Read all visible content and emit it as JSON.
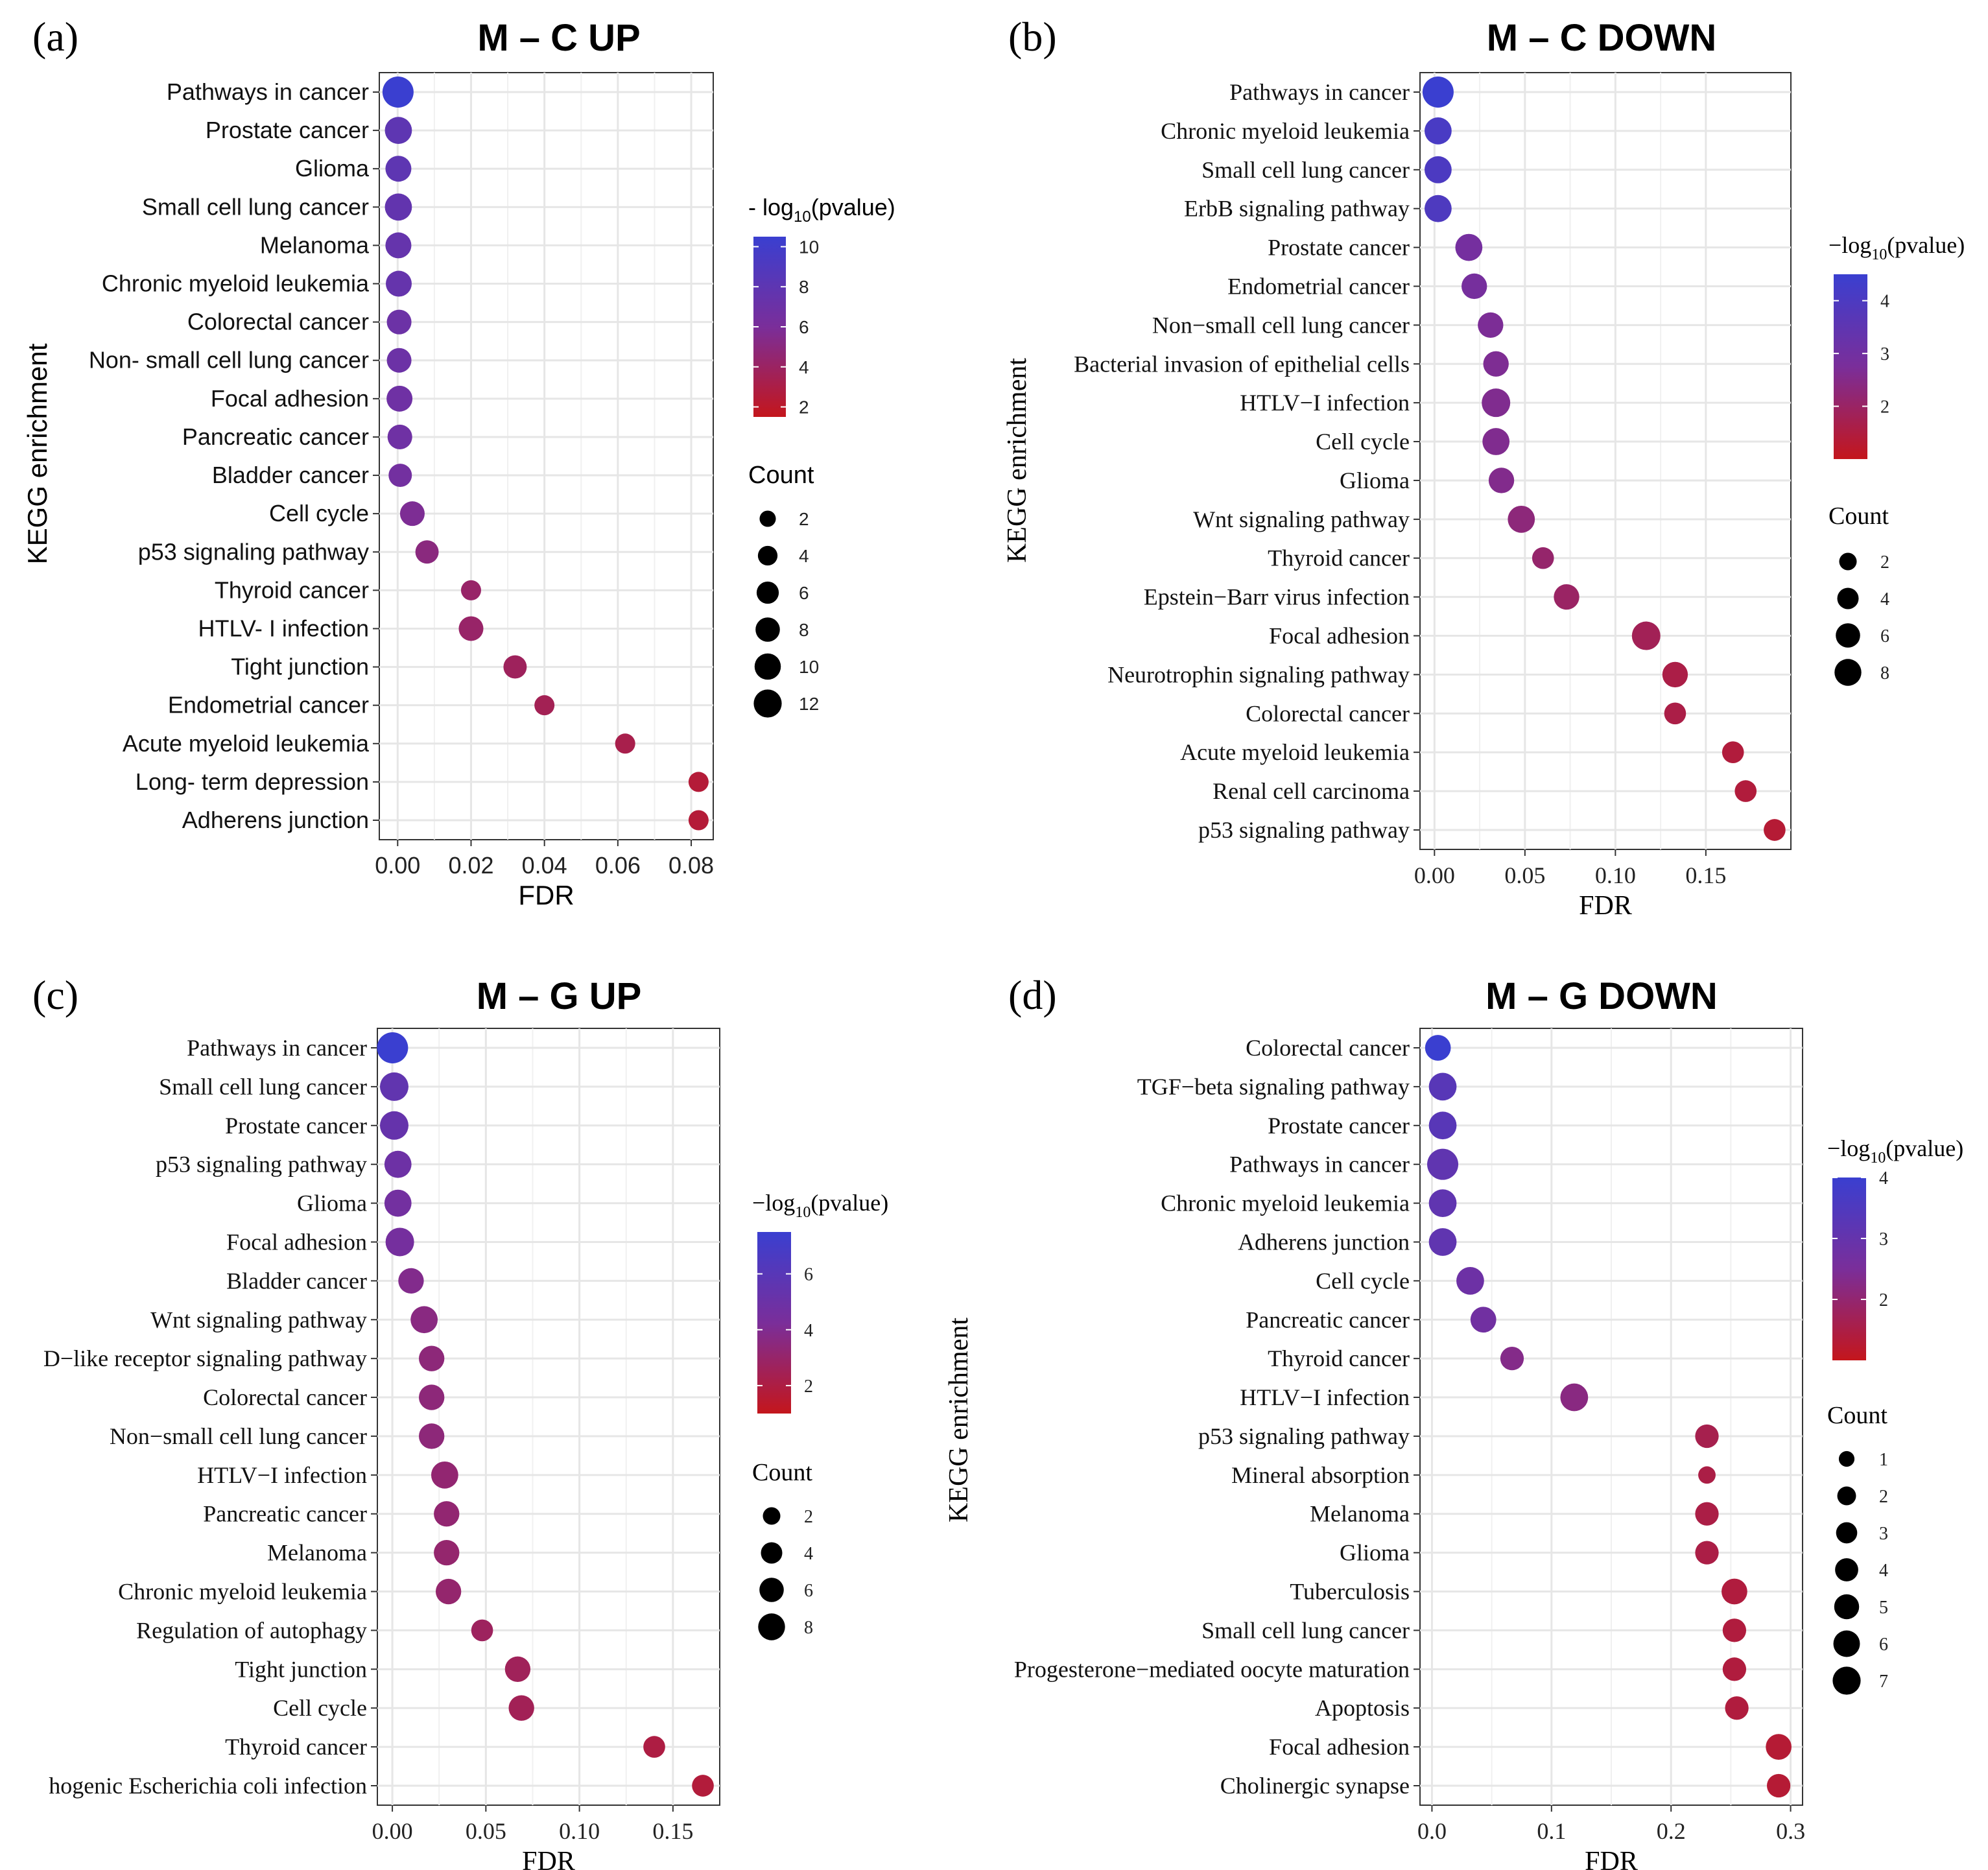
{
  "figure_title": "KEGG enrichment bubble plots",
  "colors": {
    "high": "#3a3fd0",
    "mid": "#7a2e9a",
    "low": "#c4161c",
    "grid": "#e6e6e6",
    "dot_legend": "#000000"
  },
  "chart_data": [
    {
      "panel_label": "(a)",
      "title": "M – C UP",
      "type": "scatter",
      "font_style": "sans",
      "xlabel": "FDR",
      "ylabel": "KEGG enrichment",
      "xlim": [
        -0.005,
        0.086
      ],
      "xticks": [
        0,
        0.02,
        0.04,
        0.06,
        0.08
      ],
      "xtick_labels": [
        "0.00",
        "0.02",
        "0.04",
        "0.06",
        "0.08"
      ],
      "color_legend": {
        "title_prefix": "- log",
        "title_sub": "10",
        "title_suffix": "(pvalue)",
        "min": 1.5,
        "max": 10.5,
        "ticks": [
          10,
          8,
          6,
          4,
          2
        ]
      },
      "size_legend": {
        "title": "Count",
        "values": [
          2,
          4,
          6,
          8,
          10,
          12
        ],
        "max": 12
      },
      "categories": [
        "Pathways in cancer",
        "Prostate cancer",
        "Glioma",
        "Small cell lung cancer",
        "Melanoma",
        "Chronic myeloid leukemia",
        "Colorectal cancer",
        "Non- small cell lung cancer",
        "Focal adhesion",
        "Pancreatic cancer",
        "Bladder cancer",
        "Cell cycle",
        "p53 signaling pathway",
        "Thyroid cancer",
        "HTLV- I infection",
        "Tight junction",
        "Endometrial cancer",
        "Acute myeloid leukemia",
        "Long- term depression",
        "Adherens junction"
      ],
      "fdr": [
        0.0001,
        0.0002,
        0.0002,
        0.0002,
        0.0002,
        0.0003,
        0.0004,
        0.0004,
        0.0005,
        0.0006,
        0.0007,
        0.004,
        0.008,
        0.02,
        0.02,
        0.032,
        0.04,
        0.062,
        0.082,
        0.082
      ],
      "count": [
        12,
        8,
        7,
        8,
        7,
        7,
        6,
        6,
        7,
        6,
        5,
        6,
        5,
        3,
        6,
        5,
        3,
        3,
        3,
        3
      ],
      "neglog10p": [
        10.5,
        8,
        8,
        7.7,
        7.5,
        7.5,
        7,
        7,
        6.8,
        6.8,
        6.5,
        5.8,
        5,
        4.2,
        4.2,
        3.8,
        3.5,
        3.2,
        2.5,
        2.5
      ]
    },
    {
      "panel_label": "(b)",
      "title": "M – C DOWN",
      "type": "scatter",
      "font_style": "serif",
      "xlabel": "FDR",
      "ylabel": "KEGG enrichment",
      "xlim": [
        -0.008,
        0.197
      ],
      "xticks": [
        0,
        0.05,
        0.1,
        0.15
      ],
      "xtick_labels": [
        "0.00",
        "0.05",
        "0.10",
        "0.15"
      ],
      "color_legend": {
        "title_prefix": "−log",
        "title_sub": "10",
        "title_suffix": "(pvalue)",
        "min": 1.0,
        "max": 4.5,
        "ticks": [
          4,
          3,
          2
        ]
      },
      "size_legend": {
        "title": "Count",
        "values": [
          2,
          4,
          6,
          8
        ],
        "max": 9
      },
      "categories": [
        "Pathways in cancer",
        "Chronic myeloid leukemia",
        "Small cell lung cancer",
        "ErbB signaling pathway",
        "Prostate cancer",
        "Endometrial cancer",
        "Non−small cell lung cancer",
        "Bacterial invasion of epithelial cells",
        "HTLV−I infection",
        "Cell cycle",
        "Glioma",
        "Wnt signaling pathway",
        "Thyroid cancer",
        "Epstein−Barr virus infection",
        "Focal adhesion",
        "Neurotrophin signaling pathway",
        "Colorectal cancer",
        "Acute myeloid leukemia",
        "Renal cell carcinoma",
        "p53 signaling pathway"
      ],
      "fdr": [
        0.002,
        0.002,
        0.002,
        0.002,
        0.019,
        0.022,
        0.031,
        0.034,
        0.034,
        0.034,
        0.037,
        0.048,
        0.06,
        0.073,
        0.117,
        0.133,
        0.133,
        0.165,
        0.172,
        0.188
      ],
      "count": [
        9,
        6,
        6,
        6,
        6,
        5,
        5,
        5,
        7,
        6,
        5,
        6,
        3,
        5,
        7,
        5,
        3,
        3,
        3,
        3
      ],
      "neglog10p": [
        4.6,
        4.1,
        4.0,
        3.95,
        2.9,
        2.85,
        2.7,
        2.65,
        2.6,
        2.6,
        2.55,
        2.3,
        2.1,
        2.0,
        1.8,
        1.6,
        1.6,
        1.45,
        1.45,
        1.35
      ]
    },
    {
      "panel_label": "(c)",
      "title": "M – G UP",
      "type": "scatter",
      "font_style": "serif",
      "xlabel": "FDR",
      "ylabel": "",
      "xlim": [
        -0.008,
        0.175
      ],
      "xticks": [
        0,
        0.05,
        0.1,
        0.15
      ],
      "xtick_labels": [
        "0.00",
        "0.05",
        "0.10",
        "0.15"
      ],
      "color_legend": {
        "title_prefix": "−log",
        "title_sub": "10",
        "title_suffix": "(pvalue)",
        "min": 1.0,
        "max": 7.5,
        "ticks": [
          6,
          4,
          2
        ]
      },
      "size_legend": {
        "title": "Count",
        "values": [
          2,
          4,
          6,
          8
        ],
        "max": 9
      },
      "categories": [
        "Pathways in cancer",
        "Small cell lung cancer",
        "Prostate cancer",
        "p53 signaling pathway",
        "Glioma",
        "Focal adhesion",
        "Bladder cancer",
        "Wnt signaling pathway",
        "D−like receptor signaling pathway",
        "Colorectal cancer",
        "Non−small cell lung cancer",
        "HTLV−I infection",
        "Pancreatic cancer",
        "Melanoma",
        "Chronic myeloid leukemia",
        "Regulation of autophagy",
        "Tight junction",
        "Cell cycle",
        "Thyroid cancer",
        "hogenic Escherichia coli infection"
      ],
      "fdr": [
        0.0001,
        0.001,
        0.001,
        0.003,
        0.003,
        0.004,
        0.01,
        0.017,
        0.021,
        0.021,
        0.021,
        0.028,
        0.029,
        0.029,
        0.03,
        0.048,
        0.067,
        0.069,
        0.14,
        0.166
      ],
      "count": [
        9,
        7,
        7,
        6,
        6,
        7,
        5,
        6,
        5,
        5,
        5,
        6,
        5,
        5,
        5,
        3,
        5,
        5,
        3,
        3
      ],
      "neglog10p": [
        7.5,
        5.5,
        5.3,
        4.9,
        4.6,
        4.5,
        3.9,
        3.6,
        3.4,
        3.4,
        3.4,
        3.2,
        3.2,
        3.1,
        3.1,
        2.7,
        2.6,
        2.5,
        2.0,
        1.8
      ]
    },
    {
      "panel_label": "(d)",
      "title": "M – G DOWN",
      "type": "scatter",
      "font_style": "serif",
      "xlabel": "FDR",
      "ylabel": "KEGG enrichment",
      "xlim": [
        -0.01,
        0.31
      ],
      "xticks": [
        0,
        0.1,
        0.2,
        0.3
      ],
      "xtick_labels": [
        "0.0",
        "0.1",
        "0.2",
        "0.3"
      ],
      "color_legend": {
        "title_prefix": "−log",
        "title_sub": "10",
        "title_suffix": "(pvalue)",
        "min": 1.0,
        "max": 4.0,
        "ticks": [
          4,
          3,
          2
        ]
      },
      "size_legend": {
        "title": "Count",
        "values": [
          1,
          2,
          3,
          4,
          5,
          6,
          7
        ],
        "max": 7
      },
      "categories": [
        "Colorectal cancer",
        "TGF−beta signaling pathway",
        "Prostate cancer",
        "Pathways in cancer",
        "Chronic myeloid leukemia",
        "Adherens junction",
        "Cell cycle",
        "Pancreatic cancer",
        "Thyroid cancer",
        "HTLV−I infection",
        "p53 signaling pathway",
        "Mineral absorption",
        "Melanoma",
        "Glioma",
        "Tuberculosis",
        "Small cell lung cancer",
        "Progesterone−mediated oocyte maturation",
        "Apoptosis",
        "Focal adhesion",
        "Cholinergic synapse"
      ],
      "fdr": [
        0.005,
        0.009,
        0.009,
        0.009,
        0.009,
        0.009,
        0.032,
        0.043,
        0.067,
        0.119,
        0.23,
        0.23,
        0.23,
        0.23,
        0.253,
        0.253,
        0.253,
        0.255,
        0.29,
        0.29
      ],
      "count": [
        4,
        5,
        5,
        7,
        5,
        5,
        5,
        4,
        3,
        5,
        3,
        1,
        3,
        3,
        4,
        3,
        3,
        3,
        4,
        3
      ],
      "neglog10p": [
        4.0,
        3.3,
        3.3,
        3.1,
        3.1,
        3.1,
        2.8,
        2.7,
        2.3,
        2.2,
        1.6,
        1.5,
        1.5,
        1.5,
        1.4,
        1.4,
        1.4,
        1.4,
        1.3,
        1.3
      ]
    }
  ]
}
